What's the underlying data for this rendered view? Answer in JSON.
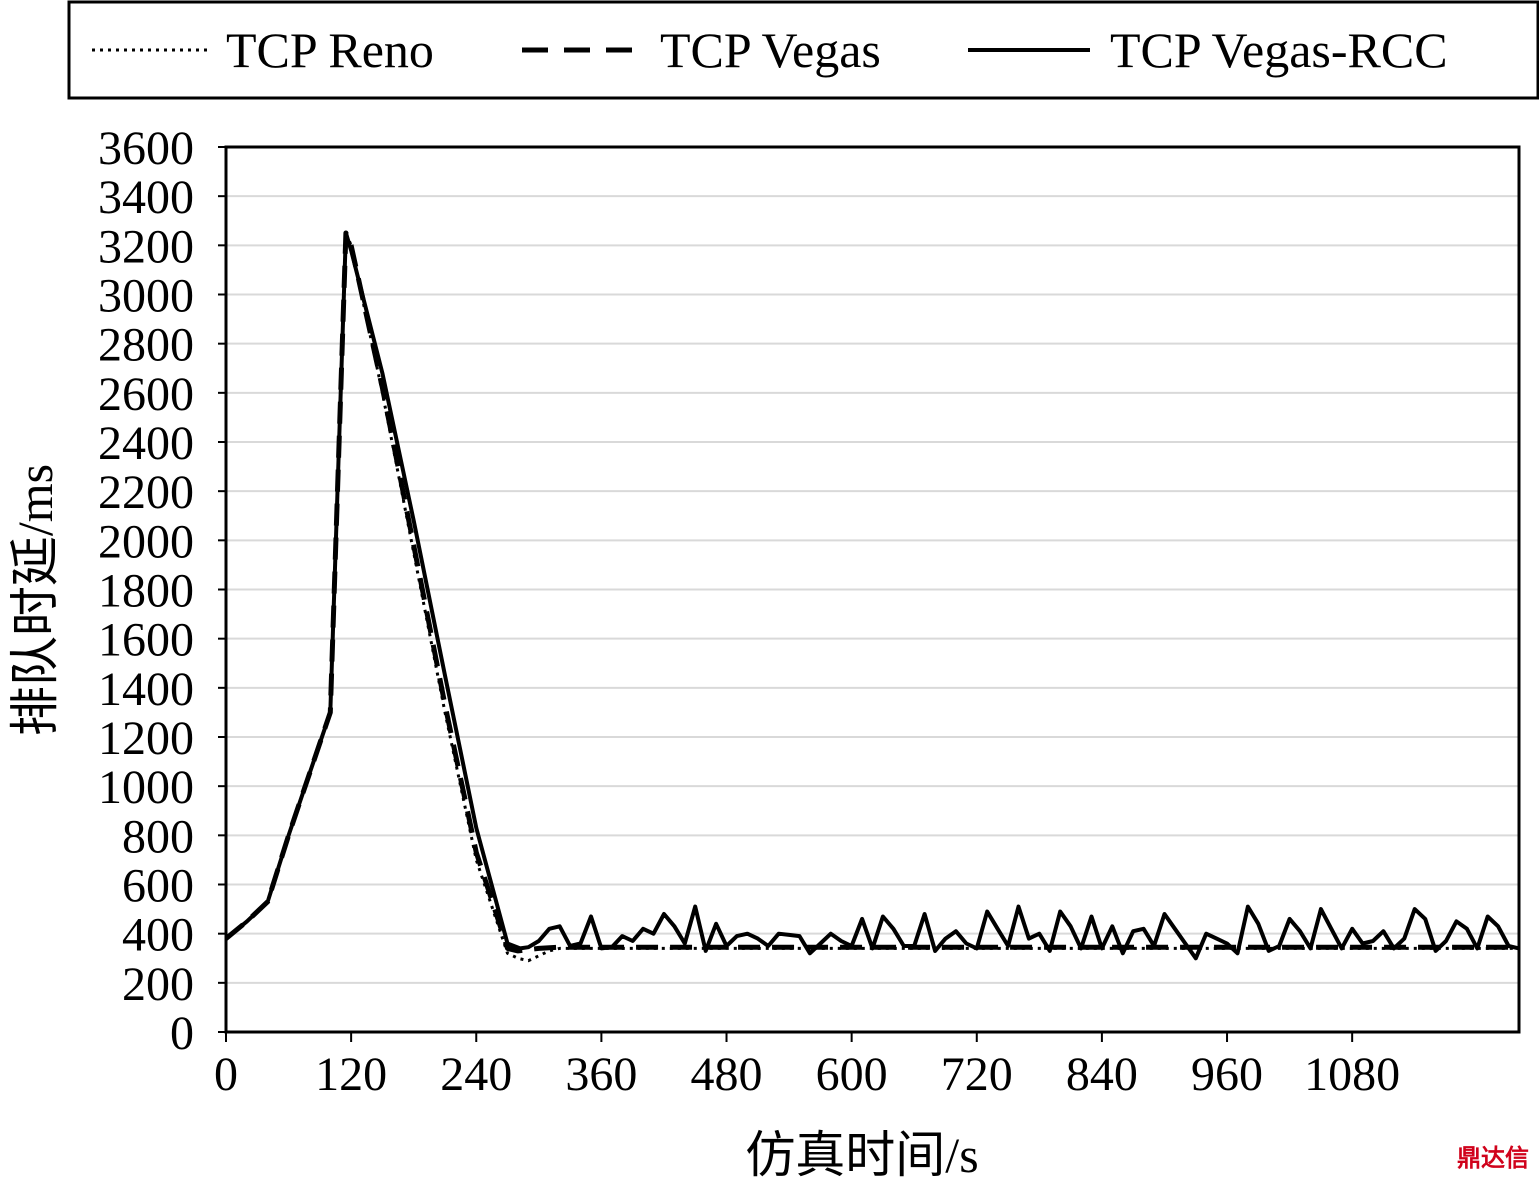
{
  "chart_data": {
    "type": "line",
    "title": "",
    "xlabel": "仿真时间/s",
    "ylabel": "排队时延/ms",
    "xlim": [
      0,
      1240
    ],
    "ylim": [
      0,
      3600
    ],
    "xticks": [
      0,
      120,
      240,
      360,
      480,
      600,
      720,
      840,
      960,
      1080
    ],
    "yticks": [
      0,
      200,
      400,
      600,
      800,
      1000,
      1200,
      1400,
      1600,
      1800,
      2000,
      2200,
      2400,
      2600,
      2800,
      3000,
      3200,
      3400,
      3600
    ],
    "grid": "horizontal",
    "legend_position": "top",
    "series": [
      {
        "name": "TCP Reno",
        "style": "dotted",
        "x": [
          0,
          20,
          40,
          60,
          80,
          100,
          115,
          120,
          150,
          180,
          210,
          240,
          270,
          280,
          290,
          300,
          310,
          320,
          340,
          360,
          380,
          400,
          420,
          440,
          460,
          480,
          500,
          520,
          540,
          560,
          580,
          600,
          620,
          640,
          660,
          680,
          700,
          720,
          740,
          760,
          780,
          800,
          820,
          840,
          860,
          880,
          900,
          920,
          940,
          960,
          980,
          1000,
          1020,
          1040,
          1060,
          1080,
          1100,
          1120,
          1140,
          1160,
          1180,
          1200,
          1220,
          1240
        ],
        "values": [
          380,
          450,
          530,
          800,
          1050,
          1300,
          3250,
          3200,
          2600,
          1950,
          1300,
          700,
          320,
          300,
          290,
          310,
          330,
          340,
          340,
          340,
          340,
          340,
          340,
          340,
          340,
          340,
          340,
          340,
          340,
          340,
          340,
          340,
          340,
          340,
          340,
          340,
          340,
          340,
          340,
          340,
          340,
          340,
          340,
          340,
          340,
          340,
          340,
          340,
          340,
          340,
          340,
          340,
          340,
          340,
          340,
          340,
          340,
          340,
          340,
          340,
          340,
          340,
          340,
          340
        ]
      },
      {
        "name": "TCP Vegas",
        "style": "dashed",
        "x": [
          0,
          20,
          40,
          60,
          80,
          100,
          115,
          120,
          150,
          180,
          210,
          240,
          270,
          280,
          290,
          300,
          320,
          340,
          360,
          380,
          400,
          440,
          480,
          520,
          560,
          600,
          640,
          680,
          720,
          760,
          800,
          840,
          880,
          920,
          960,
          1000,
          1040,
          1080,
          1120,
          1160,
          1200,
          1240
        ],
        "values": [
          380,
          450,
          530,
          800,
          1050,
          1300,
          3250,
          3200,
          2620,
          1980,
          1330,
          730,
          340,
          330,
          335,
          340,
          345,
          345,
          345,
          345,
          345,
          345,
          345,
          345,
          345,
          345,
          345,
          345,
          345,
          345,
          345,
          345,
          345,
          345,
          345,
          345,
          345,
          345,
          345,
          345,
          345,
          345
        ]
      },
      {
        "name": "TCP Vegas-RCC",
        "style": "solid",
        "x": [
          0,
          20,
          40,
          60,
          80,
          100,
          115,
          120,
          150,
          180,
          210,
          240,
          270,
          282,
          290,
          300,
          310,
          320,
          330,
          340,
          350,
          360,
          370,
          380,
          390,
          400,
          410,
          420,
          430,
          440,
          450,
          460,
          470,
          480,
          490,
          500,
          510,
          520,
          530,
          540,
          550,
          560,
          570,
          580,
          590,
          600,
          610,
          620,
          630,
          640,
          650,
          660,
          670,
          680,
          690,
          700,
          710,
          720,
          730,
          740,
          750,
          760,
          770,
          780,
          790,
          800,
          810,
          820,
          830,
          840,
          850,
          860,
          870,
          880,
          890,
          900,
          910,
          920,
          930,
          940,
          950,
          960,
          970,
          980,
          990,
          1000,
          1010,
          1020,
          1030,
          1040,
          1050,
          1060,
          1070,
          1080,
          1090,
          1100,
          1110,
          1120,
          1130,
          1140,
          1150,
          1160,
          1170,
          1180,
          1190,
          1200,
          1210,
          1220,
          1230,
          1240
        ],
        "values": [
          380,
          450,
          530,
          800,
          1050,
          1300,
          3250,
          3180,
          2680,
          2080,
          1450,
          830,
          360,
          340,
          345,
          370,
          420,
          430,
          350,
          360,
          470,
          340,
          345,
          390,
          370,
          420,
          400,
          480,
          430,
          360,
          510,
          330,
          440,
          350,
          390,
          400,
          380,
          350,
          400,
          395,
          390,
          320,
          360,
          400,
          370,
          350,
          460,
          340,
          470,
          420,
          350,
          350,
          480,
          330,
          380,
          410,
          360,
          340,
          490,
          420,
          350,
          510,
          380,
          400,
          330,
          490,
          430,
          340,
          470,
          340,
          430,
          320,
          410,
          420,
          350,
          480,
          420,
          360,
          300,
          400,
          380,
          360,
          320,
          510,
          440,
          330,
          350,
          460,
          410,
          340,
          500,
          420,
          340,
          420,
          360,
          370,
          410,
          340,
          380,
          500,
          460,
          330,
          370,
          450,
          420,
          340,
          470,
          430,
          350,
          340
        ]
      }
    ]
  },
  "watermark": "鼎达信"
}
